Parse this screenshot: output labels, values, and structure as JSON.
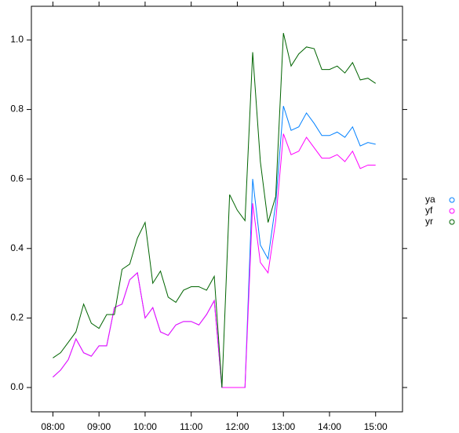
{
  "chart_data": {
    "type": "line",
    "x": [
      480,
      490,
      500,
      510,
      520,
      530,
      540,
      550,
      560,
      570,
      580,
      590,
      600,
      610,
      620,
      630,
      640,
      650,
      660,
      670,
      680,
      690,
      700,
      710,
      720,
      730,
      740,
      750,
      760,
      770,
      780,
      790,
      800,
      810,
      820,
      830,
      840,
      850,
      860,
      870,
      880,
      890,
      900
    ],
    "series": [
      {
        "name": "ya",
        "color": "#0080ff",
        "values": [
          0.03,
          0.05,
          0.08,
          0.14,
          0.1,
          0.09,
          0.12,
          0.12,
          0.23,
          0.24,
          0.31,
          0.33,
          0.2,
          0.23,
          0.16,
          0.15,
          0.18,
          0.19,
          0.19,
          0.18,
          0.21,
          0.25,
          0.0,
          0.0,
          0.0,
          0.0,
          0.6,
          0.41,
          0.37,
          0.53,
          0.81,
          0.74,
          0.75,
          0.79,
          0.76,
          0.725,
          0.725,
          0.735,
          0.72,
          0.75,
          0.695,
          0.705,
          0.7
        ]
      },
      {
        "name": "yf",
        "color": "#ff00ff",
        "values": [
          0.03,
          0.05,
          0.08,
          0.14,
          0.1,
          0.09,
          0.12,
          0.12,
          0.23,
          0.24,
          0.31,
          0.33,
          0.2,
          0.23,
          0.16,
          0.15,
          0.18,
          0.19,
          0.19,
          0.18,
          0.21,
          0.25,
          0.0,
          0.0,
          0.0,
          0.0,
          0.53,
          0.36,
          0.33,
          0.48,
          0.73,
          0.67,
          0.68,
          0.72,
          0.69,
          0.66,
          0.66,
          0.67,
          0.65,
          0.68,
          0.63,
          0.64,
          0.64
        ]
      },
      {
        "name": "yr",
        "color": "#006400",
        "values": [
          0.085,
          0.1,
          0.13,
          0.16,
          0.24,
          0.185,
          0.17,
          0.21,
          0.21,
          0.34,
          0.355,
          0.43,
          0.475,
          0.3,
          0.335,
          0.26,
          0.245,
          0.28,
          0.29,
          0.29,
          0.28,
          0.32,
          0.0,
          0.555,
          0.51,
          0.48,
          0.965,
          0.65,
          0.475,
          0.55,
          1.02,
          0.925,
          0.96,
          0.98,
          0.975,
          0.915,
          0.915,
          0.925,
          0.905,
          0.935,
          0.885,
          0.89,
          0.875
        ]
      }
    ],
    "xlim": [
      452,
      935
    ],
    "xticks": [
      {
        "value": 480,
        "label": "08:00"
      },
      {
        "value": 540,
        "label": "09:00"
      },
      {
        "value": 600,
        "label": "10:00"
      },
      {
        "value": 660,
        "label": "11:00"
      },
      {
        "value": 720,
        "label": "12:00"
      },
      {
        "value": 780,
        "label": "13:00"
      },
      {
        "value": 840,
        "label": "14:00"
      },
      {
        "value": 900,
        "label": "15:00"
      }
    ],
    "ylim": [
      -0.07,
      1.097
    ],
    "yticks": [
      {
        "value": 0,
        "label": "0.0"
      },
      {
        "value": 0.2,
        "label": "0.2"
      },
      {
        "value": 0.4,
        "label": "0.4"
      },
      {
        "value": 0.6,
        "label": "0.6"
      },
      {
        "value": 0.8,
        "label": "0.8"
      },
      {
        "value": 1,
        "label": "1.0"
      }
    ],
    "legend": "right"
  }
}
